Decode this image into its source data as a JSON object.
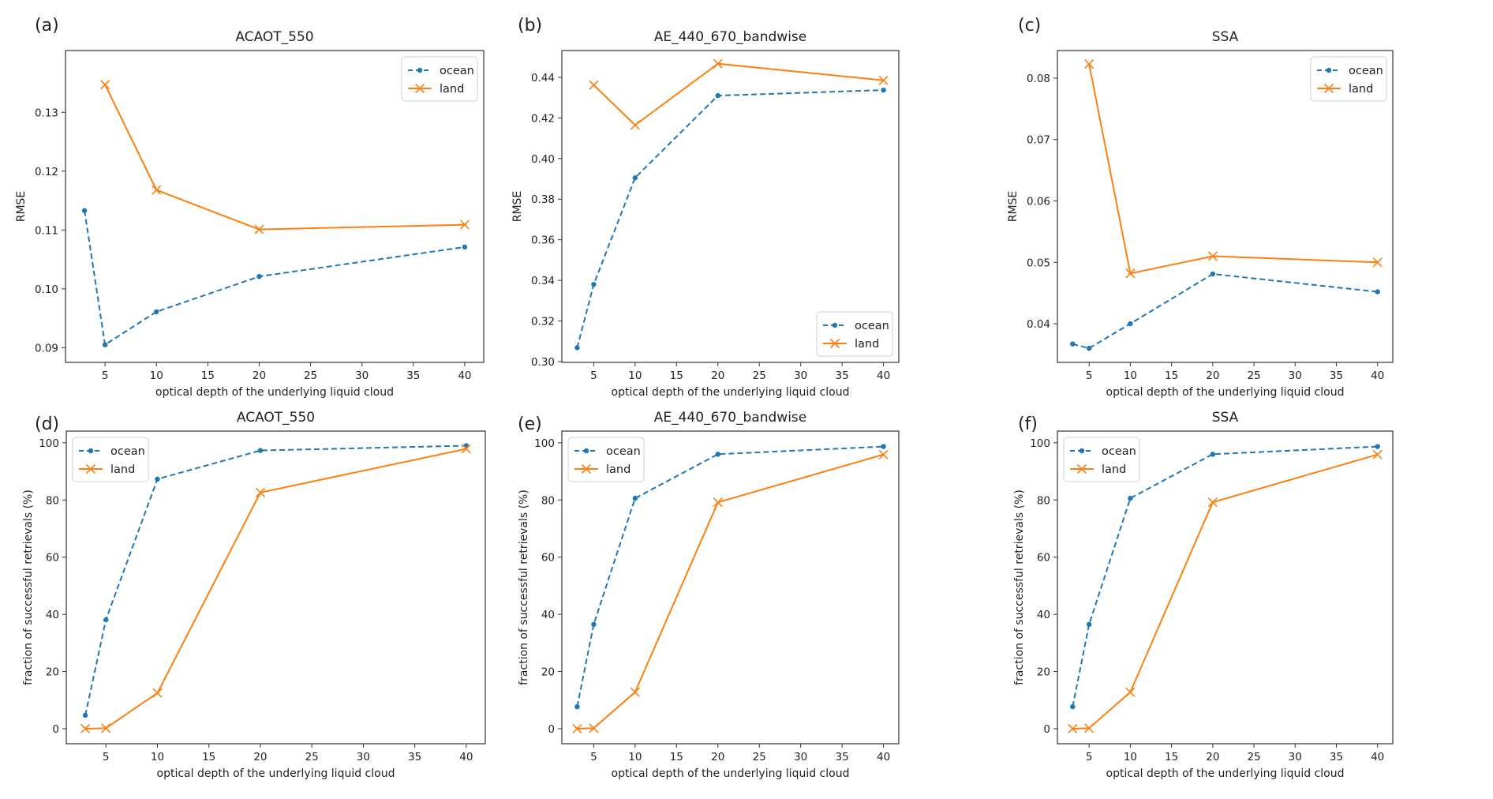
{
  "figure": {
    "series_styles": {
      "ocean": {
        "color": "#1f77b4",
        "linestyle": "dashed",
        "marker": "dot"
      },
      "land": {
        "color": "#ff7f0e",
        "linestyle": "solid",
        "marker": "x"
      }
    }
  },
  "chart_data": [
    {
      "panel_label": "(a)",
      "type": "line",
      "title": "ACAOT_550",
      "xlabel": "optical depth of the underlying liquid cloud",
      "ylabel": "RMSE",
      "xlim": [
        1.15,
        41.85
      ],
      "ylim": [
        0.0875,
        0.1405
      ],
      "xticks": [
        5,
        10,
        15,
        20,
        25,
        30,
        35,
        40
      ],
      "yticks": [
        0.09,
        0.1,
        0.11,
        0.12,
        0.13
      ],
      "ytick_labels": [
        "0.09",
        "0.10",
        "0.11",
        "0.12",
        "0.13"
      ],
      "legend": {
        "loc": "top-right",
        "entries": [
          "ocean",
          "land"
        ]
      },
      "grid": false,
      "series": [
        {
          "name": "ocean",
          "x": [
            3,
            5,
            10,
            20,
            40
          ],
          "y": [
            0.1133,
            0.0905,
            0.0961,
            0.1021,
            0.1071
          ]
        },
        {
          "name": "land",
          "x": [
            5,
            10,
            20,
            40
          ],
          "y": [
            0.1347,
            0.1168,
            0.1101,
            0.1109
          ]
        }
      ]
    },
    {
      "panel_label": "(b)",
      "type": "line",
      "title": "AE_440_670_bandwise",
      "xlabel": "optical depth of the underlying liquid cloud",
      "ylabel": "RMSE",
      "xlim": [
        1.15,
        41.85
      ],
      "ylim": [
        0.2996,
        0.4532
      ],
      "xticks": [
        5,
        10,
        15,
        20,
        25,
        30,
        35,
        40
      ],
      "yticks": [
        0.3,
        0.32,
        0.34,
        0.36,
        0.38,
        0.4,
        0.42,
        0.44
      ],
      "ytick_labels": [
        "0.30",
        "0.32",
        "0.34",
        "0.36",
        "0.38",
        "0.40",
        "0.42",
        "0.44"
      ],
      "legend": {
        "loc": "bottom-right",
        "entries": [
          "ocean",
          "land"
        ]
      },
      "grid": false,
      "series": [
        {
          "name": "ocean",
          "x": [
            3,
            5,
            10,
            20,
            40
          ],
          "y": [
            0.3068,
            0.338,
            0.3905,
            0.431,
            0.4337
          ]
        },
        {
          "name": "land",
          "x": [
            5,
            10,
            20,
            40
          ],
          "y": [
            0.4362,
            0.4165,
            0.4467,
            0.4385
          ]
        }
      ]
    },
    {
      "panel_label": "(c)",
      "type": "line",
      "title": "SSA",
      "xlabel": "optical depth of the underlying liquid cloud",
      "ylabel": "RMSE",
      "xlim": [
        1.15,
        41.85
      ],
      "ylim": [
        0.0337,
        0.0845
      ],
      "xticks": [
        5,
        10,
        15,
        20,
        25,
        30,
        35,
        40
      ],
      "yticks": [
        0.04,
        0.05,
        0.06,
        0.07,
        0.08
      ],
      "ytick_labels": [
        "0.04",
        "0.05",
        "0.06",
        "0.07",
        "0.08"
      ],
      "legend": {
        "loc": "top-right",
        "entries": [
          "ocean",
          "land"
        ]
      },
      "grid": false,
      "series": [
        {
          "name": "ocean",
          "x": [
            3,
            5,
            10,
            20,
            40
          ],
          "y": [
            0.0367,
            0.036,
            0.04,
            0.0481,
            0.0452
          ]
        },
        {
          "name": "land",
          "x": [
            5,
            10,
            20,
            40
          ],
          "y": [
            0.0823,
            0.0482,
            0.051,
            0.05
          ]
        }
      ]
    },
    {
      "panel_label": "(d)",
      "type": "line",
      "title": "ACAOT_550",
      "xlabel": "optical depth of the underlying liquid cloud",
      "ylabel": "fraction of successful retrievals (%)",
      "xlim": [
        1.15,
        41.85
      ],
      "ylim": [
        -5.25,
        104.1
      ],
      "xticks": [
        5,
        10,
        15,
        20,
        25,
        30,
        35,
        40
      ],
      "yticks": [
        0,
        20,
        40,
        60,
        80,
        100
      ],
      "ytick_labels": [
        "0",
        "20",
        "40",
        "60",
        "80",
        "100"
      ],
      "legend": {
        "loc": "top-left",
        "entries": [
          "ocean",
          "land"
        ]
      },
      "grid": false,
      "series": [
        {
          "name": "ocean",
          "x": [
            3,
            5,
            10,
            20,
            40
          ],
          "y": [
            4.7,
            38.1,
            87.3,
            97.3,
            99.0
          ]
        },
        {
          "name": "land",
          "x": [
            3,
            5,
            10,
            20,
            40
          ],
          "y": [
            0.0,
            0.2,
            12.5,
            82.6,
            97.9
          ]
        }
      ]
    },
    {
      "panel_label": "(e)",
      "type": "line",
      "title": "AE_440_670_bandwise",
      "xlabel": "optical depth of the underlying liquid cloud",
      "ylabel": "fraction of successful retrievals (%)",
      "xlim": [
        1.15,
        41.85
      ],
      "ylim": [
        -5.25,
        104.1
      ],
      "xticks": [
        5,
        10,
        15,
        20,
        25,
        30,
        35,
        40
      ],
      "yticks": [
        0,
        20,
        40,
        60,
        80,
        100
      ],
      "ytick_labels": [
        "0",
        "20",
        "40",
        "60",
        "80",
        "100"
      ],
      "legend": {
        "loc": "top-left",
        "entries": [
          "ocean",
          "land"
        ]
      },
      "grid": false,
      "series": [
        {
          "name": "ocean",
          "x": [
            3,
            5,
            10,
            20,
            40
          ],
          "y": [
            7.7,
            36.5,
            80.6,
            96.0,
            98.7
          ]
        },
        {
          "name": "land",
          "x": [
            3,
            5,
            10,
            20,
            40
          ],
          "y": [
            0.0,
            0.2,
            12.8,
            79.2,
            95.9
          ]
        }
      ]
    },
    {
      "panel_label": "(f)",
      "type": "line",
      "title": "SSA",
      "xlabel": "optical depth of the underlying liquid cloud",
      "ylabel": "fraction of successful retrievals (%)",
      "xlim": [
        1.15,
        41.85
      ],
      "ylim": [
        -5.25,
        104.1
      ],
      "xticks": [
        5,
        10,
        15,
        20,
        25,
        30,
        35,
        40
      ],
      "yticks": [
        0,
        20,
        40,
        60,
        80,
        100
      ],
      "ytick_labels": [
        "0",
        "20",
        "40",
        "60",
        "80",
        "100"
      ],
      "legend": {
        "loc": "top-left",
        "entries": [
          "ocean",
          "land"
        ]
      },
      "grid": false,
      "series": [
        {
          "name": "ocean",
          "x": [
            3,
            5,
            10,
            20,
            40
          ],
          "y": [
            7.7,
            36.5,
            80.6,
            96.0,
            98.7
          ]
        },
        {
          "name": "land",
          "x": [
            3,
            5,
            10,
            20,
            40
          ],
          "y": [
            0.0,
            0.2,
            12.8,
            79.2,
            95.9
          ]
        }
      ]
    }
  ]
}
